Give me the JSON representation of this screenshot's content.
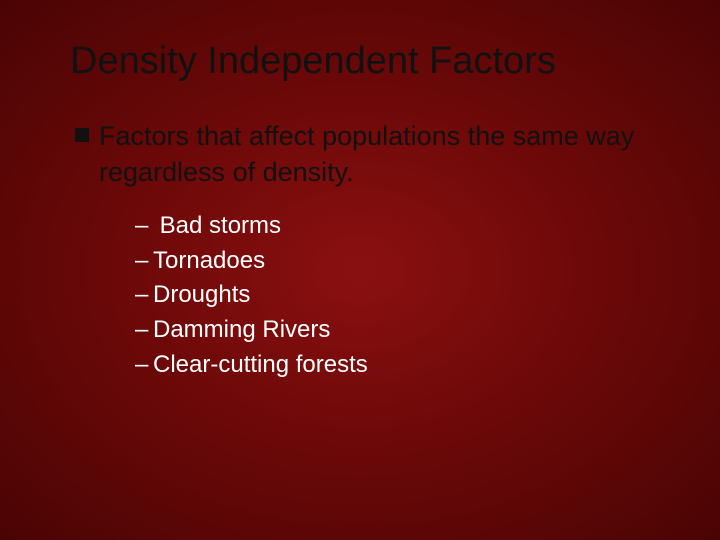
{
  "slide": {
    "title": "Density Independent  Factors",
    "main_bullet": "Factors that affect populations the same way regardless of density.",
    "sub_items": [
      " Bad storms",
      "Tornadoes",
      "Droughts",
      "Damming Rivers",
      "Clear-cutting forests"
    ]
  },
  "style": {
    "background_gradient_inner": "#8b1010",
    "background_gradient_mid": "#6a0808",
    "background_gradient_outer": "#4a0404",
    "title_color": "#111111",
    "title_fontsize": 38,
    "main_text_color": "#111111",
    "main_text_fontsize": 27,
    "bullet_color": "#111111",
    "bullet_size": 14,
    "sub_text_color": "#ffffff",
    "sub_text_fontsize": 24,
    "font_family": "Verdana"
  }
}
